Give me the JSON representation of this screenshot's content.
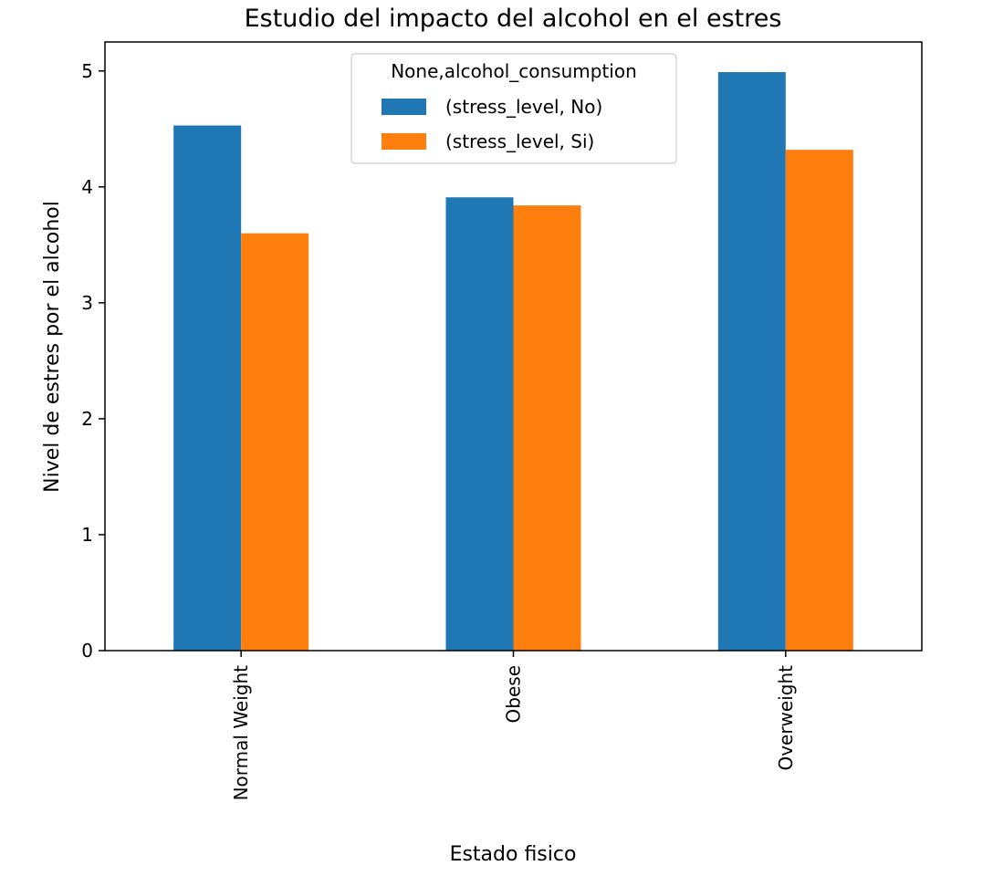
{
  "chart_data": {
    "type": "bar",
    "title": "Estudio del impacto del alcohol en el estres",
    "xlabel": "Estado fisico",
    "ylabel": "Nivel de estres por el alcohol",
    "categories": [
      "Normal Weight",
      "Obese",
      "Overweight"
    ],
    "series": [
      {
        "name": "(stress_level, No)",
        "values": [
          4.53,
          3.91,
          4.99
        ],
        "color": "#1f77b4"
      },
      {
        "name": "(stress_level, Si)",
        "values": [
          3.6,
          3.84,
          4.32
        ],
        "color": "#ff7f0e"
      }
    ],
    "ylim": [
      0,
      5.25
    ],
    "yticks": [
      "0",
      "1",
      "2",
      "3",
      "4",
      "5"
    ],
    "legend": {
      "title": "None,alcohol_consumption",
      "placement": "top-center"
    },
    "grid": false,
    "x_tick_rotation": "vertical"
  }
}
